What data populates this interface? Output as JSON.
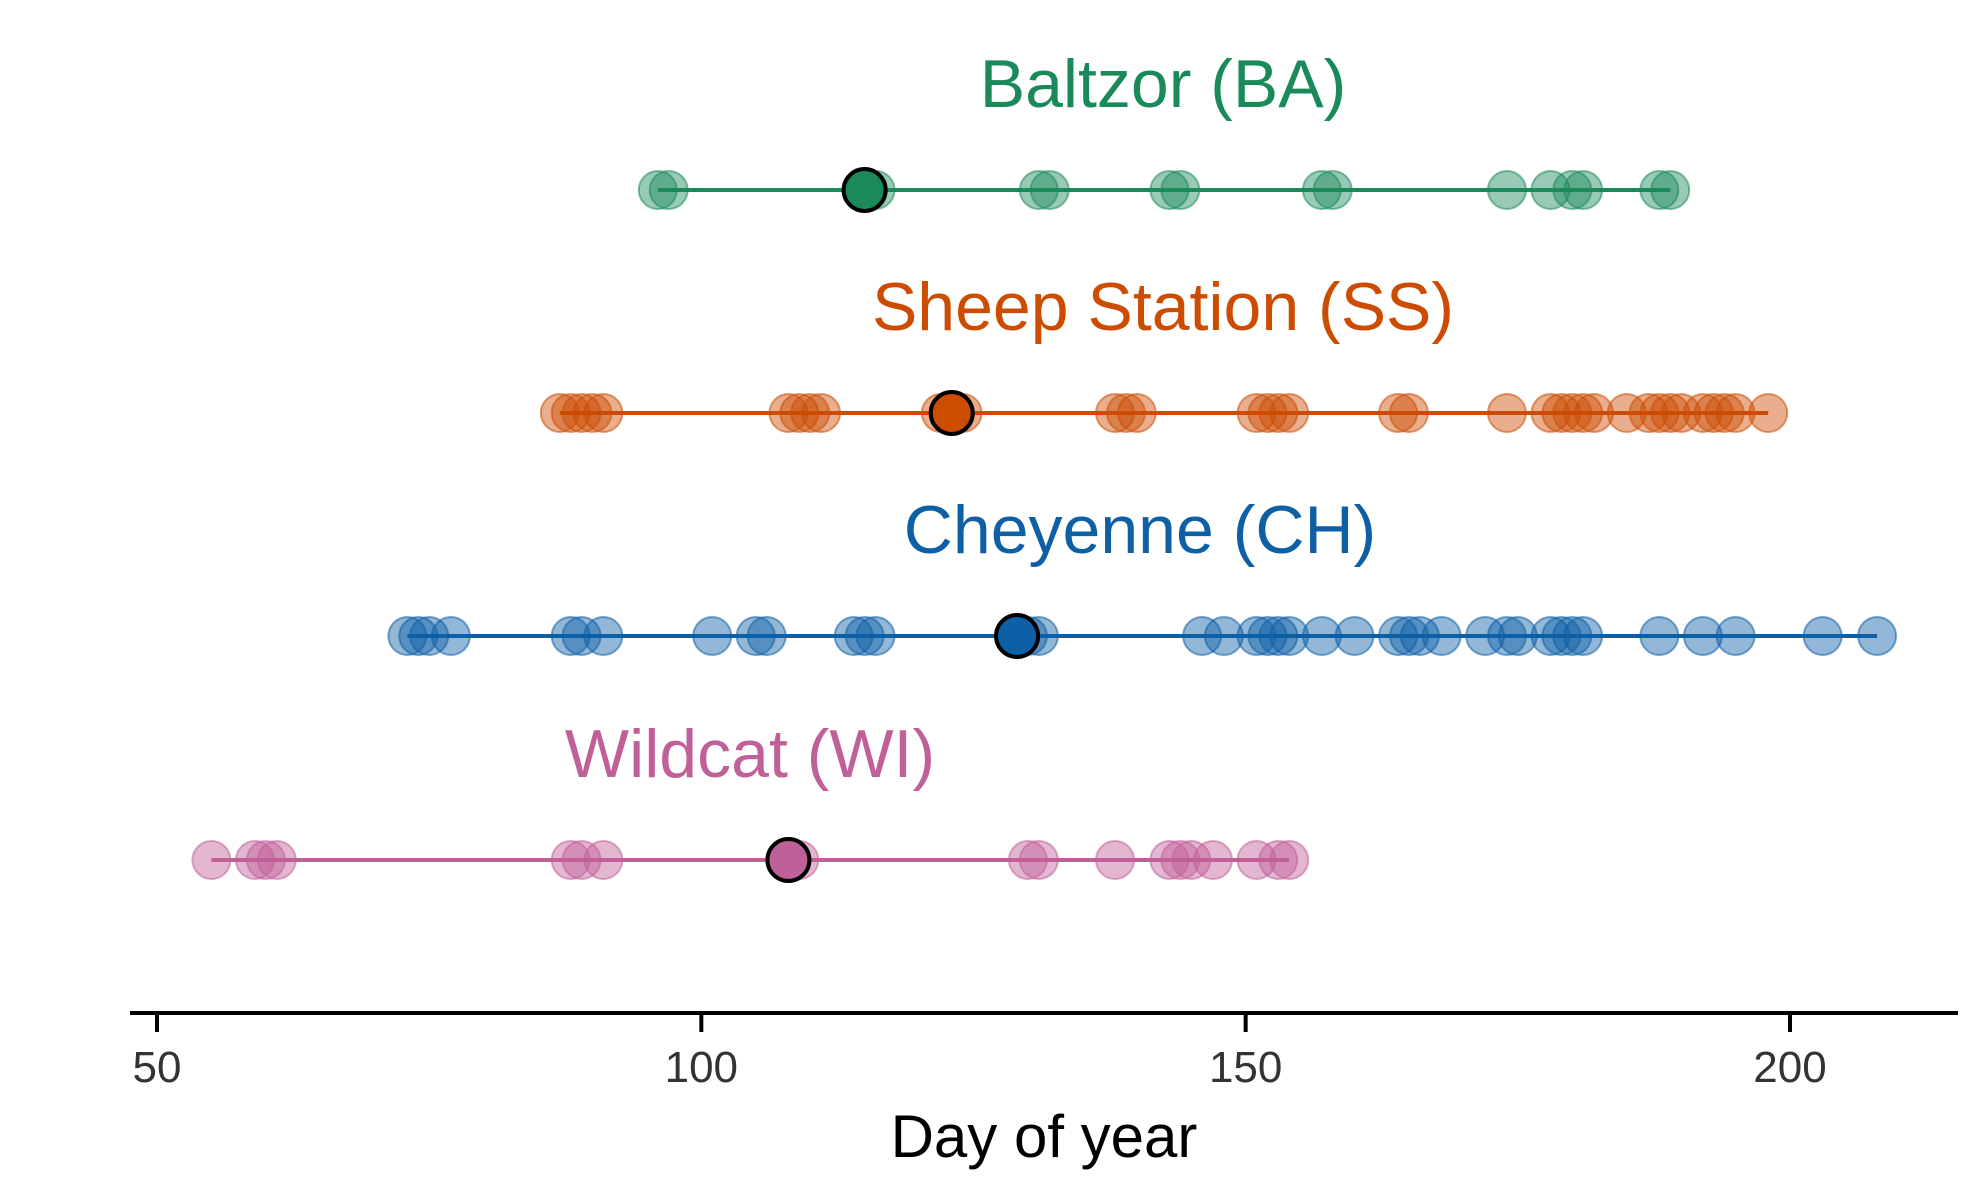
{
  "chart_data": {
    "type": "scatter",
    "title": "",
    "xlabel": "Day of year",
    "ylabel": "",
    "xlim": [
      47.5,
      215.5
    ],
    "xticks": [
      50,
      100,
      150,
      200
    ],
    "grid": false,
    "legend": "none",
    "series": [
      {
        "name": "Baltzor (BA)",
        "color": "#1b8a5a",
        "range": [
          96,
          189
        ],
        "mean": 115,
        "values": [
          96,
          97,
          115,
          116,
          131,
          132,
          143,
          144,
          157,
          158,
          174,
          178,
          180,
          181,
          188,
          189
        ]
      },
      {
        "name": "Sheep Station (SS)",
        "color": "#cc4c02",
        "range": [
          87,
          198
        ],
        "mean": 123,
        "values": [
          87,
          88,
          89,
          90,
          91,
          108,
          109,
          110,
          111,
          122,
          123,
          124,
          138,
          139,
          140,
          151,
          152,
          153,
          154,
          164,
          165,
          174,
          178,
          179,
          180,
          181,
          182,
          185,
          187,
          188,
          189,
          190,
          192,
          193,
          194,
          195,
          198
        ]
      },
      {
        "name": "Cheyenne (CH)",
        "color": "#0d5fa6",
        "range": [
          73,
          208
        ],
        "mean": 129,
        "values": [
          73,
          74,
          75,
          77,
          88,
          89,
          91,
          101,
          105,
          106,
          114,
          115,
          116,
          129,
          130,
          131,
          146,
          148,
          151,
          152,
          153,
          154,
          157,
          160,
          164,
          165,
          166,
          168,
          172,
          174,
          175,
          178,
          179,
          180,
          181,
          188,
          192,
          195,
          203,
          208
        ]
      },
      {
        "name": "Wildcat (WI)",
        "color": "#c06098",
        "range": [
          55,
          154
        ],
        "mean": 108,
        "values": [
          55,
          59,
          60,
          61,
          88,
          89,
          91,
          108,
          109,
          130,
          131,
          138,
          143,
          144,
          145,
          147,
          151,
          153,
          154
        ]
      }
    ]
  }
}
